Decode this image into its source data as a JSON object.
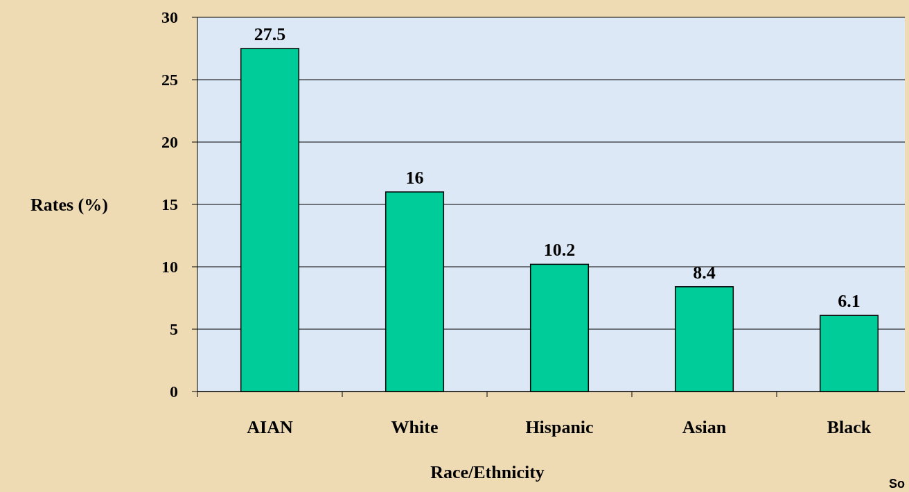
{
  "chart_data": {
    "type": "bar",
    "xlabel": "Race/Ethnicity",
    "ylabel": "Rates (%)",
    "categories": [
      "AIAN",
      "White",
      "Hispanic",
      "Asian",
      "Black"
    ],
    "values": [
      27.5,
      16,
      10.2,
      8.4,
      6.1
    ],
    "color": "#00cc99",
    "ylim": [
      0,
      30
    ],
    "yticks": [
      0,
      5,
      10,
      15,
      20,
      25,
      30
    ],
    "grid": "y",
    "data_labels": true,
    "annotations": [
      "So"
    ]
  }
}
